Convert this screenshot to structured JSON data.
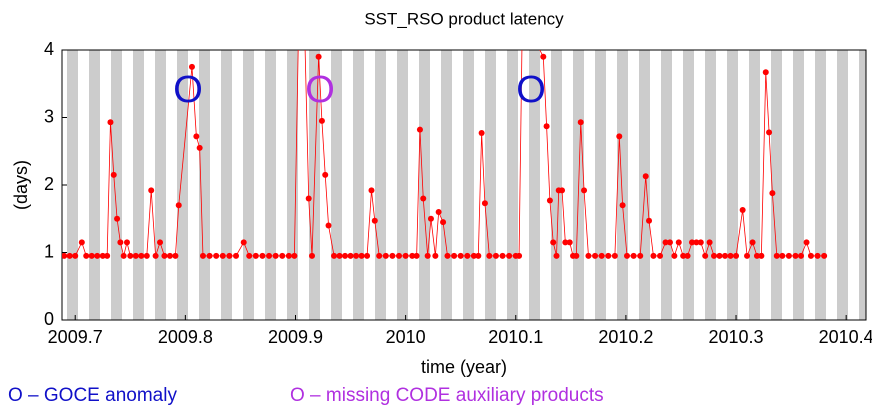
{
  "chart_data": {
    "type": "line",
    "title": "SST_RSO product latency",
    "xlabel": "time (year)",
    "ylabel": "(days)",
    "color": "#ff0000",
    "x": [
      2009.69,
      2009.695,
      2009.7,
      2009.706,
      2009.71,
      2009.715,
      2009.72,
      2009.725,
      2009.729,
      2009.732,
      2009.735,
      2009.738,
      2009.741,
      2009.744,
      2009.747,
      2009.75,
      2009.755,
      2009.76,
      2009.765,
      2009.769,
      2009.773,
      2009.777,
      2009.781,
      2009.786,
      2009.791,
      2009.794,
      2009.806,
      2009.81,
      2009.813,
      2009.816,
      2009.822,
      2009.828,
      2009.834,
      2009.84,
      2009.846,
      2009.853,
      2009.858,
      2009.864,
      2009.87,
      2009.876,
      2009.882,
      2009.888,
      2009.894,
      2009.899,
      2009.903,
      2009.908,
      2009.912,
      2009.915,
      2009.921,
      2009.924,
      2009.927,
      2009.93,
      2009.935,
      2009.94,
      2009.945,
      2009.95,
      2009.955,
      2009.96,
      2009.965,
      2009.969,
      2009.972,
      2009.976,
      2009.982,
      2009.988,
      2009.994,
      2010.0,
      2010.006,
      2010.01,
      2010.013,
      2010.016,
      2010.02,
      2010.023,
      2010.027,
      2010.03,
      2010.034,
      2010.038,
      2010.044,
      2010.05,
      2010.056,
      2010.062,
      2010.066,
      2010.069,
      2010.072,
      2010.076,
      2010.082,
      2010.088,
      2010.094,
      2010.1,
      2010.103,
      2010.106,
      2010.125,
      2010.128,
      2010.131,
      2010.134,
      2010.137,
      2010.139,
      2010.142,
      2010.145,
      2010.149,
      2010.152,
      2010.155,
      2010.159,
      2010.162,
      2010.166,
      2010.172,
      2010.178,
      2010.184,
      2010.19,
      2010.194,
      2010.197,
      2010.201,
      2010.207,
      2010.213,
      2010.218,
      2010.221,
      2010.225,
      2010.231,
      2010.236,
      2010.24,
      2010.244,
      2010.248,
      2010.252,
      2010.256,
      2010.26,
      2010.264,
      2010.268,
      2010.272,
      2010.276,
      2010.28,
      2010.285,
      2010.29,
      2010.295,
      2010.3,
      2010.306,
      2010.31,
      2010.315,
      2010.319,
      2010.323,
      2010.327,
      2010.33,
      2010.333,
      2010.337,
      2010.342,
      2010.348,
      2010.354,
      2010.359,
      2010.364,
      2010.368,
      2010.374,
      2010.38
    ],
    "values": [
      0.95,
      0.95,
      0.95,
      1.15,
      0.95,
      0.95,
      0.95,
      0.95,
      0.95,
      2.93,
      2.15,
      1.5,
      1.15,
      0.95,
      1.15,
      0.95,
      0.95,
      0.95,
      0.95,
      1.92,
      0.95,
      1.15,
      0.95,
      0.95,
      0.95,
      1.7,
      3.75,
      2.72,
      2.55,
      0.95,
      0.95,
      0.95,
      0.95,
      0.95,
      0.95,
      1.15,
      0.95,
      0.95,
      0.95,
      0.95,
      0.95,
      0.95,
      0.95,
      0.95,
      4.5,
      4.5,
      1.8,
      0.95,
      3.9,
      2.95,
      2.15,
      1.4,
      0.95,
      0.95,
      0.95,
      0.95,
      0.95,
      0.95,
      0.95,
      1.92,
      1.47,
      0.95,
      0.95,
      0.95,
      0.95,
      0.95,
      0.95,
      0.95,
      2.82,
      1.8,
      0.95,
      1.5,
      0.95,
      1.6,
      1.45,
      0.95,
      0.95,
      0.95,
      0.95,
      0.95,
      0.95,
      2.77,
      1.73,
      0.95,
      0.95,
      0.95,
      0.95,
      0.95,
      0.95,
      4.5,
      3.9,
      2.87,
      1.77,
      1.15,
      0.95,
      1.92,
      1.92,
      1.15,
      1.15,
      0.95,
      0.95,
      2.93,
      1.92,
      0.95,
      0.95,
      0.95,
      0.95,
      0.95,
      2.72,
      1.7,
      0.95,
      0.95,
      0.95,
      2.13,
      1.47,
      0.95,
      0.95,
      1.15,
      1.15,
      0.95,
      1.15,
      0.95,
      0.95,
      1.15,
      1.15,
      1.15,
      0.95,
      1.15,
      0.95,
      0.95,
      0.95,
      0.95,
      0.95,
      1.63,
      0.95,
      1.15,
      0.95,
      0.95,
      3.67,
      2.78,
      1.88,
      0.95,
      0.95,
      0.95,
      0.95,
      0.95,
      1.15,
      0.95,
      0.95,
      0.95
    ],
    "xlim": [
      2009.688,
      2010.418
    ],
    "ylim": [
      0,
      4
    ],
    "xticks": [
      2009.7,
      2009.8,
      2009.9,
      2010,
      2010.1,
      2010.2,
      2010.3,
      2010.4
    ],
    "yticks": [
      0,
      1,
      2,
      3,
      4
    ],
    "annotations": [
      {
        "text": "O",
        "color": "#1010c8"
      },
      {
        "text": "O",
        "color": "#b030e0"
      },
      {
        "text": "O",
        "color": "#1010c8"
      }
    ],
    "legend_notes": [
      {
        "text": "O – GOCE anomaly",
        "color": "#1010c8"
      },
      {
        "text": "O – missing CODE auxiliary products",
        "color": "#b030e0"
      }
    ]
  }
}
